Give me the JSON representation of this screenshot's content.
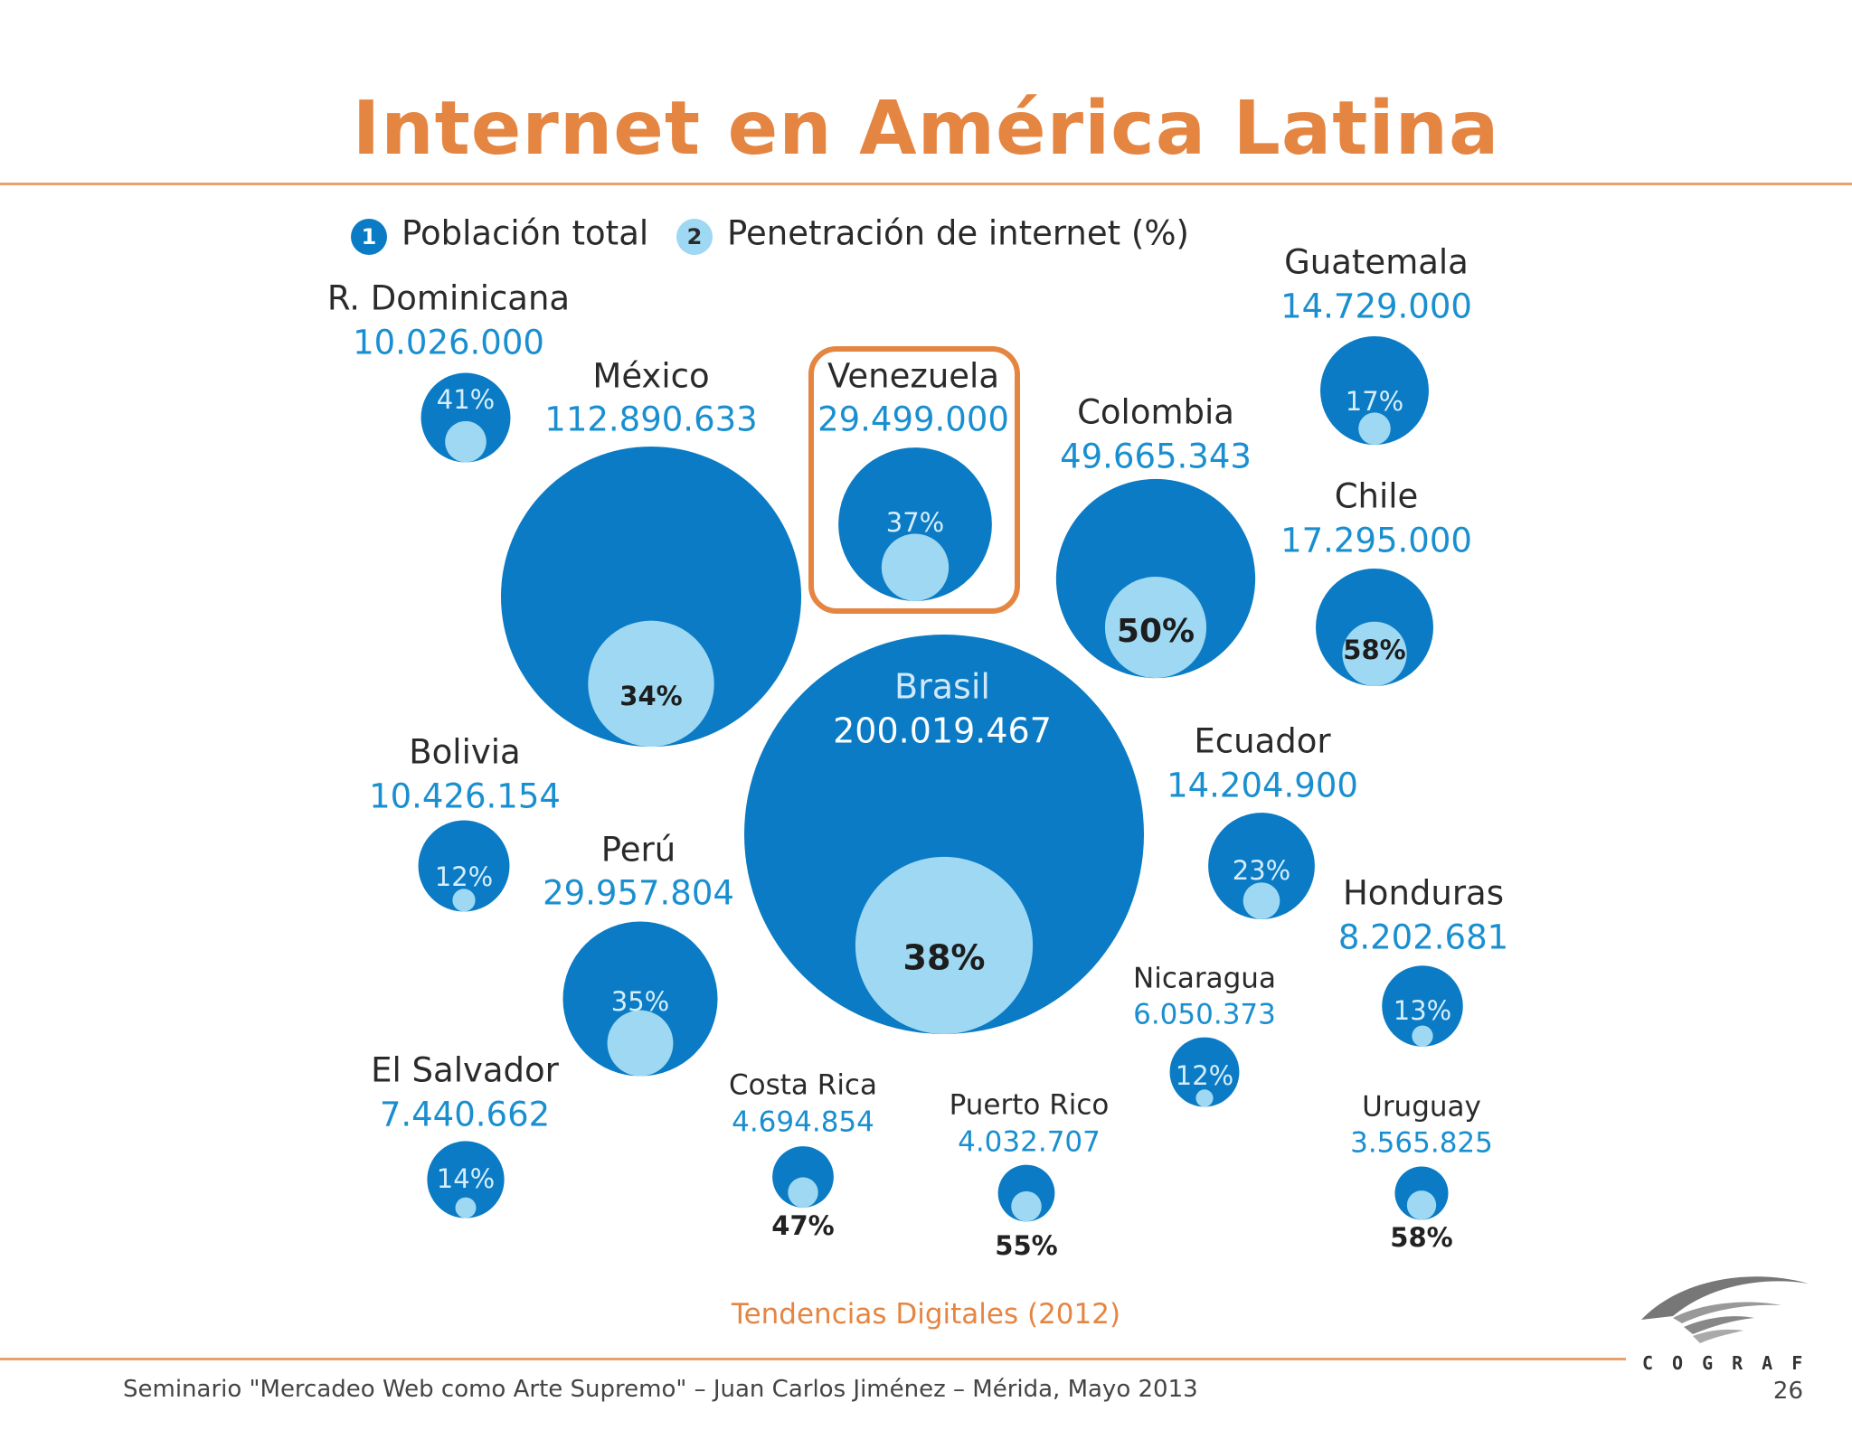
{
  "slide": {
    "title": "Internet en América Latina",
    "source": "Tendencias Digitales (2012)",
    "footer": "Seminario \"Mercadeo Web como Arte Supremo\" – Juan Carlos Jiménez – Mérida, Mayo 2013",
    "page_number": "26",
    "logo_text": "COGRAF"
  },
  "colors": {
    "accent": "#E58542",
    "population_bubble": "#0A7BC4",
    "penetration_bubble": "#9ED8F2",
    "value_text": "#1A8FD0",
    "label_text": "#2a2a2a",
    "highlight_box": "#E58542"
  },
  "chart_data": {
    "type": "bubble",
    "legend": [
      {
        "marker": "1",
        "label": "Población total"
      },
      {
        "marker": "2",
        "label": "Penetración de internet (%)"
      }
    ],
    "highlighted": "Venezuela",
    "countries": [
      {
        "id": "rdominicana",
        "name": "R. Dominicana",
        "population": "10.026.000",
        "population_value": 10026000,
        "penetration": "41%",
        "penetration_value": 41
      },
      {
        "id": "mexico",
        "name": "México",
        "population": "112.890.633",
        "population_value": 112890633,
        "penetration": "34%",
        "penetration_value": 34
      },
      {
        "id": "venezuela",
        "name": "Venezuela",
        "population": "29.499.000",
        "population_value": 29499000,
        "penetration": "37%",
        "penetration_value": 37
      },
      {
        "id": "colombia",
        "name": "Colombia",
        "population": "49.665.343",
        "population_value": 49665343,
        "penetration": "50%",
        "penetration_value": 50
      },
      {
        "id": "guatemala",
        "name": "Guatemala",
        "population": "14.729.000",
        "population_value": 14729000,
        "penetration": "17%",
        "penetration_value": 17
      },
      {
        "id": "chile",
        "name": "Chile",
        "population": "17.295.000",
        "population_value": 17295000,
        "penetration": "58%",
        "penetration_value": 58
      },
      {
        "id": "brasil",
        "name": "Brasil",
        "population": "200.019.467",
        "population_value": 200019467,
        "penetration": "38%",
        "penetration_value": 38
      },
      {
        "id": "bolivia",
        "name": "Bolivia",
        "population": "10.426.154",
        "population_value": 10426154,
        "penetration": "12%",
        "penetration_value": 12
      },
      {
        "id": "peru",
        "name": "Perú",
        "population": "29.957.804",
        "population_value": 29957804,
        "penetration": "35%",
        "penetration_value": 35
      },
      {
        "id": "ecuador",
        "name": "Ecuador",
        "population": "14.204.900",
        "population_value": 14204900,
        "penetration": "23%",
        "penetration_value": 23
      },
      {
        "id": "honduras",
        "name": "Honduras",
        "population": "8.202.681",
        "population_value": 8202681,
        "penetration": "13%",
        "penetration_value": 13
      },
      {
        "id": "nicaragua",
        "name": "Nicaragua",
        "population": "6.050.373",
        "population_value": 6050373,
        "penetration": "12%",
        "penetration_value": 12
      },
      {
        "id": "elsalvador",
        "name": "El Salvador",
        "population": "7.440.662",
        "population_value": 7440662,
        "penetration": "14%",
        "penetration_value": 14
      },
      {
        "id": "costarica",
        "name": "Costa Rica",
        "population": "4.694.854",
        "population_value": 4694854,
        "penetration": "47%",
        "penetration_value": 47
      },
      {
        "id": "puertorico",
        "name": "Puerto Rico",
        "population": "4.032.707",
        "population_value": 4032707,
        "penetration": "55%",
        "penetration_value": 55
      },
      {
        "id": "uruguay",
        "name": "Uruguay",
        "population": "3.565.825",
        "population_value": 3565825,
        "penetration": "58%",
        "penetration_value": 58
      }
    ]
  }
}
